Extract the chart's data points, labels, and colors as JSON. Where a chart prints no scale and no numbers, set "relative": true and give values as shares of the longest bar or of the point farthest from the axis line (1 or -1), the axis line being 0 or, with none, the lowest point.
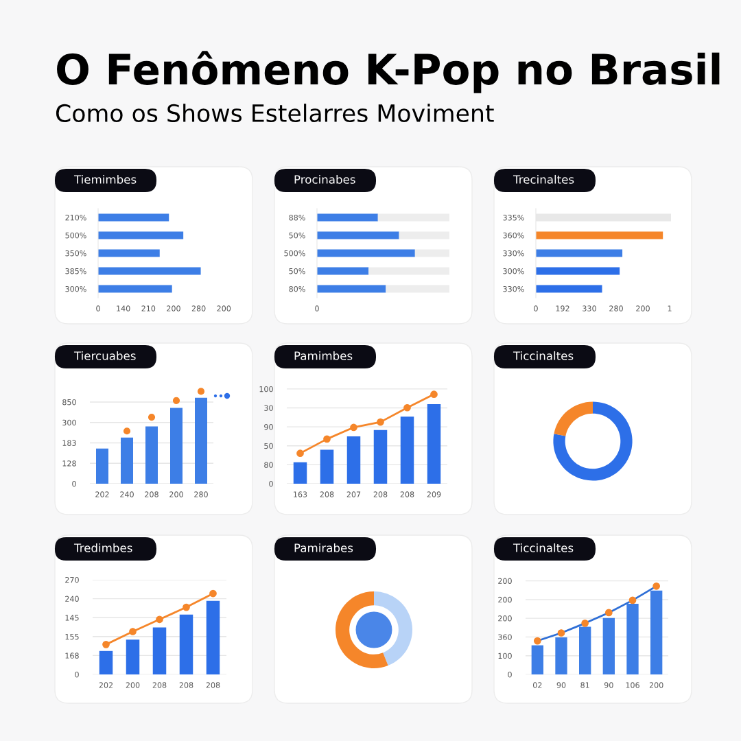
{
  "chart_data": [
    {
      "type": "other",
      "title": "O Fenômeno K-Pop no Brasil",
      "subtitle": "Como os Shows Estelarres Moviment"
    },
    {
      "type": "bar",
      "title": "Tiemimbes",
      "orientation": "horizontal",
      "relative": true,
      "categories": [
        "210%",
        "500%",
        "350%",
        "385%",
        "300%"
      ],
      "color": "#3d7ee6",
      "values": [
        0.69,
        0.83,
        0.6,
        1,
        0.72
      ],
      "annotations": [
        "0",
        "140",
        "210",
        "200",
        "280",
        "200"
      ]
    },
    {
      "type": "bar",
      "title": "Procinabes",
      "orientation": "horizontal",
      "relative": true,
      "stacked": true,
      "categories": [
        "88%",
        "50%",
        "500%",
        "50%",
        "80%"
      ],
      "series": [
        {
          "color": "#3d7ee6",
          "values": [
            0.46,
            0.62,
            0.74,
            0.39,
            0.52
          ]
        },
        {
          "color": "#ededed",
          "values": [
            0.54,
            0.38,
            0.26,
            0.61,
            0.48
          ]
        }
      ],
      "annotations": [
        "0"
      ]
    },
    {
      "type": "bar",
      "title": "Trecinaltes",
      "orientation": "horizontal",
      "relative": true,
      "categories": [
        "335%",
        "360%",
        "330%",
        "300%",
        "330%"
      ],
      "colors": [
        "#e8e8e8",
        "#f5862a",
        "#3d7ee6",
        "#2d6fe8",
        "#2d6fe8"
      ],
      "values": [
        1,
        0.94,
        0.64,
        0.62,
        0.49
      ],
      "annotations": [
        "0",
        "192",
        "330",
        "280",
        "200",
        "1"
      ]
    },
    {
      "type": "bar",
      "title": "Tiercuabes",
      "relative": true,
      "categories": [
        "202",
        "240",
        "208",
        "200",
        "280"
      ],
      "series": [
        {
          "type": "bar",
          "color": "#3d7ee6",
          "values": [
            0.38,
            0.5,
            0.62,
            0.82,
            0.93
          ]
        },
        {
          "type": "scatter",
          "color": "#f5862a",
          "x": [
            "202",
            "240",
            "208",
            "200",
            "280"
          ],
          "values": [
            null,
            0.57,
            0.72,
            0.9,
            1
          ]
        }
      ],
      "annotations": [
        "0",
        "128",
        "183",
        "300",
        "850"
      ],
      "grid": "y",
      "marker": "circle"
    },
    {
      "type": "bar",
      "title": "Pamimbes",
      "relative": true,
      "categories": [
        "163",
        "208",
        "207",
        "208",
        "208",
        "209"
      ],
      "series": [
        {
          "type": "bar",
          "color": "#2d6fe8",
          "values": [
            0.24,
            0.38,
            0.53,
            0.6,
            0.75,
            0.89
          ]
        },
        {
          "type": "line",
          "color": "#f5862a",
          "values": [
            0.34,
            0.5,
            0.63,
            0.69,
            0.85,
            1
          ]
        }
      ],
      "annotations": [
        "0",
        "80",
        "50",
        "90",
        "30",
        "100"
      ],
      "grid": "y",
      "marker": "circle",
      "line_style": "solid"
    },
    {
      "type": "donut",
      "title": "Ticcinaltes",
      "categories": [
        null,
        null
      ],
      "values": [
        78,
        22
      ],
      "colors": [
        "#2d6fe8",
        "#f5862a"
      ]
    },
    {
      "type": "bar",
      "title": "Tredimbes",
      "relative": true,
      "categories": [
        "202",
        "200",
        "208",
        "208",
        "208"
      ],
      "series": [
        {
          "type": "bar",
          "color": "#2d6fe8",
          "values": [
            0.29,
            0.43,
            0.58,
            0.74,
            0.91
          ]
        },
        {
          "type": "line",
          "color": "#f5862a",
          "values": [
            0.37,
            0.53,
            0.68,
            0.83,
            1
          ]
        }
      ],
      "annotations": [
        "0",
        "168",
        "155",
        "145",
        "240",
        "270"
      ],
      "grid": "y",
      "marker": "circle",
      "line_style": "solid"
    },
    {
      "type": "donut",
      "title": "Pamirabes",
      "categories": [
        null,
        null
      ],
      "values": [
        44,
        56
      ],
      "colors": [
        "#b8d3f7",
        "#f5862a"
      ]
    },
    {
      "type": "bar",
      "title": "Ticcinaltes",
      "relative": true,
      "categories": [
        "02",
        "90",
        "81",
        "90",
        "106",
        "200"
      ],
      "series": [
        {
          "type": "bar",
          "color": "#3d7ee6",
          "values": [
            0.33,
            0.42,
            0.54,
            0.64,
            0.8,
            0.95
          ]
        },
        {
          "type": "line",
          "color": "#2f6fd6",
          "colors": [
            "#f5862a",
            "#f5862a",
            "#f5862a",
            "#f5862a",
            "#f5862a",
            "#f5862a"
          ],
          "values": [
            0.38,
            0.47,
            0.58,
            0.7,
            0.84,
            1
          ]
        }
      ],
      "annotations": [
        "0",
        "100",
        "360",
        "200",
        "200",
        "200"
      ],
      "grid": "y",
      "marker": "circle",
      "line_style": "solid"
    }
  ]
}
